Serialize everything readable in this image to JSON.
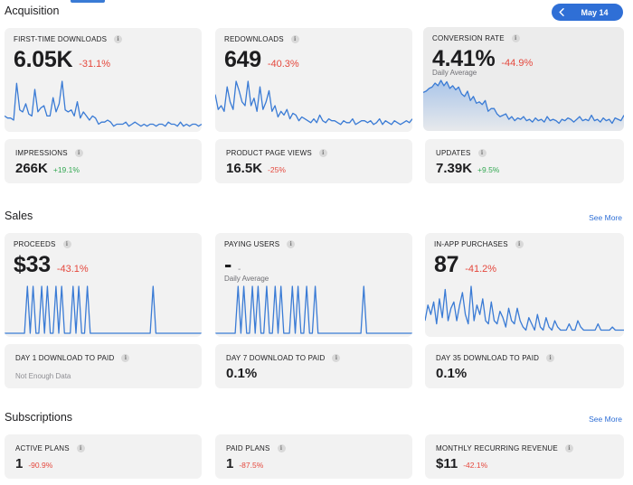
{
  "date_picker": {
    "label": "May 14",
    "prev_icon": "chevron-left-icon"
  },
  "sections": {
    "acquisition": {
      "title": "Acquisition"
    },
    "sales": {
      "title": "Sales",
      "see_more": "See More"
    },
    "subscriptions": {
      "title": "Subscriptions",
      "see_more": "See More"
    }
  },
  "acquisition": {
    "first_time_downloads": {
      "label": "FIRST-TIME DOWNLOADS",
      "value": "6.05K",
      "delta": "-31.1%",
      "series": [
        6,
        5,
        5,
        4,
        22,
        9,
        8,
        12,
        7,
        6,
        19,
        8,
        10,
        11,
        6,
        6,
        15,
        8,
        12,
        23,
        9,
        8,
        9,
        6,
        13,
        5,
        8,
        6,
        4,
        6,
        5,
        2,
        3,
        3,
        4,
        3,
        1,
        2,
        2,
        2,
        3,
        1,
        2,
        3,
        2,
        1,
        2,
        1,
        2,
        2,
        1,
        2,
        2,
        1,
        3,
        2,
        2,
        1,
        3,
        1,
        2,
        1,
        2,
        2,
        1,
        2
      ]
    },
    "redownloads": {
      "label": "REDOWNLOADS",
      "value": "649",
      "delta": "-40.3%",
      "series": [
        18,
        10,
        12,
        9,
        22,
        14,
        10,
        25,
        20,
        14,
        12,
        25,
        12,
        16,
        9,
        22,
        10,
        14,
        20,
        9,
        12,
        6,
        9,
        7,
        10,
        5,
        8,
        7,
        4,
        6,
        5,
        4,
        3,
        5,
        3,
        7,
        4,
        3,
        5,
        4,
        4,
        3,
        2,
        4,
        3,
        3,
        5,
        2,
        3,
        4,
        4,
        3,
        4,
        2,
        3,
        5,
        2,
        4,
        3,
        2,
        4,
        3,
        2,
        3,
        4,
        3,
        5
      ]
    },
    "conversion_rate": {
      "label": "CONVERSION RATE",
      "value": "4.41%",
      "delta": "-44.9%",
      "sub": "Daily Average",
      "series": [
        26,
        27,
        29,
        30,
        33,
        31,
        35,
        31,
        34,
        29,
        31,
        28,
        30,
        25,
        23,
        27,
        20,
        23,
        18,
        19,
        17,
        20,
        12,
        14,
        14,
        10,
        8,
        9,
        10,
        6,
        8,
        5,
        7,
        6,
        8,
        5,
        6,
        4,
        7,
        5,
        6,
        4,
        8,
        5,
        6,
        5,
        3,
        6,
        5,
        7,
        6,
        4,
        6,
        8,
        5,
        6,
        5,
        9,
        5,
        6,
        4,
        7,
        5,
        6,
        3,
        7,
        6,
        5,
        9
      ]
    },
    "impressions": {
      "label": "IMPRESSIONS",
      "value": "266K",
      "delta": "+19.1%"
    },
    "product_page_views": {
      "label": "PRODUCT PAGE VIEWS",
      "value": "16.5K",
      "delta": "-25%"
    },
    "updates": {
      "label": "UPDATES",
      "value": "7.39K",
      "delta": "+9.5%"
    }
  },
  "sales": {
    "proceeds": {
      "label": "PROCEEDS",
      "value": "$33",
      "delta": "-43.1%",
      "series": [
        0,
        0,
        0,
        0,
        0,
        0,
        0,
        0,
        1,
        0,
        1,
        0,
        0,
        1,
        0,
        1,
        0,
        0,
        1,
        0,
        1,
        0,
        0,
        0,
        1,
        0,
        1,
        0,
        0,
        1,
        0,
        0,
        0,
        0,
        0,
        0,
        0,
        0,
        0,
        0,
        0,
        0,
        0,
        0,
        0,
        0,
        0,
        0,
        0,
        0,
        0,
        0,
        1,
        0,
        0,
        0,
        0,
        0,
        0,
        0,
        0,
        0,
        0,
        0,
        0,
        0,
        0,
        0,
        0,
        0
      ]
    },
    "paying_users": {
      "label": "PAYING USERS",
      "value": "-",
      "delta": "-",
      "sub": "Daily Average",
      "series": [
        0,
        0,
        0,
        0,
        0,
        0,
        0,
        0,
        1,
        0,
        1,
        0,
        0,
        1,
        0,
        1,
        0,
        0,
        1,
        0,
        0,
        1,
        0,
        1,
        0,
        0,
        0,
        1,
        0,
        1,
        0,
        0,
        1,
        0,
        0,
        1,
        0,
        0,
        0,
        0,
        0,
        0,
        0,
        0,
        0,
        0,
        0,
        0,
        0,
        0,
        0,
        0,
        1,
        0,
        0,
        0,
        0,
        0,
        0,
        0,
        0,
        0,
        0,
        0,
        0,
        0,
        0,
        0,
        0,
        0
      ]
    },
    "in_app_purchases": {
      "label": "IN-APP PURCHASES",
      "value": "87",
      "delta": "-41.2%",
      "series": [
        4,
        9,
        6,
        10,
        3,
        11,
        5,
        14,
        4,
        8,
        10,
        4,
        9,
        13,
        6,
        3,
        15,
        4,
        9,
        6,
        11,
        4,
        3,
        10,
        4,
        3,
        7,
        5,
        2,
        8,
        4,
        3,
        8,
        4,
        2,
        1,
        5,
        3,
        1,
        6,
        2,
        1,
        5,
        2,
        1,
        4,
        2,
        1,
        1,
        1,
        3,
        1,
        1,
        4,
        2,
        1,
        1,
        1,
        1,
        1,
        3,
        1,
        1,
        1,
        1,
        2,
        1,
        1,
        1,
        1
      ]
    },
    "day1_download_to_paid": {
      "label": "DAY 1 DOWNLOAD TO PAID",
      "note": "Not Enough Data"
    },
    "day7_download_to_paid": {
      "label": "DAY 7 DOWNLOAD TO PAID",
      "value": "0.1%"
    },
    "day35_download_to_paid": {
      "label": "DAY 35 DOWNLOAD TO PAID",
      "value": "0.1%"
    }
  },
  "subscriptions": {
    "active_plans": {
      "label": "ACTIVE PLANS",
      "value": "1",
      "delta": "-90.9%"
    },
    "paid_plans": {
      "label": "PAID PLANS",
      "value": "1",
      "delta": "-87.5%"
    },
    "mrr": {
      "label": "MONTHLY RECURRING REVENUE",
      "value": "$11",
      "delta": "-42.1%"
    }
  },
  "colors": {
    "accent": "#2f6fd6",
    "negative": "#e5483d",
    "positive": "#33a852",
    "line": "#3a7bd5",
    "card": "#f2f2f2"
  }
}
